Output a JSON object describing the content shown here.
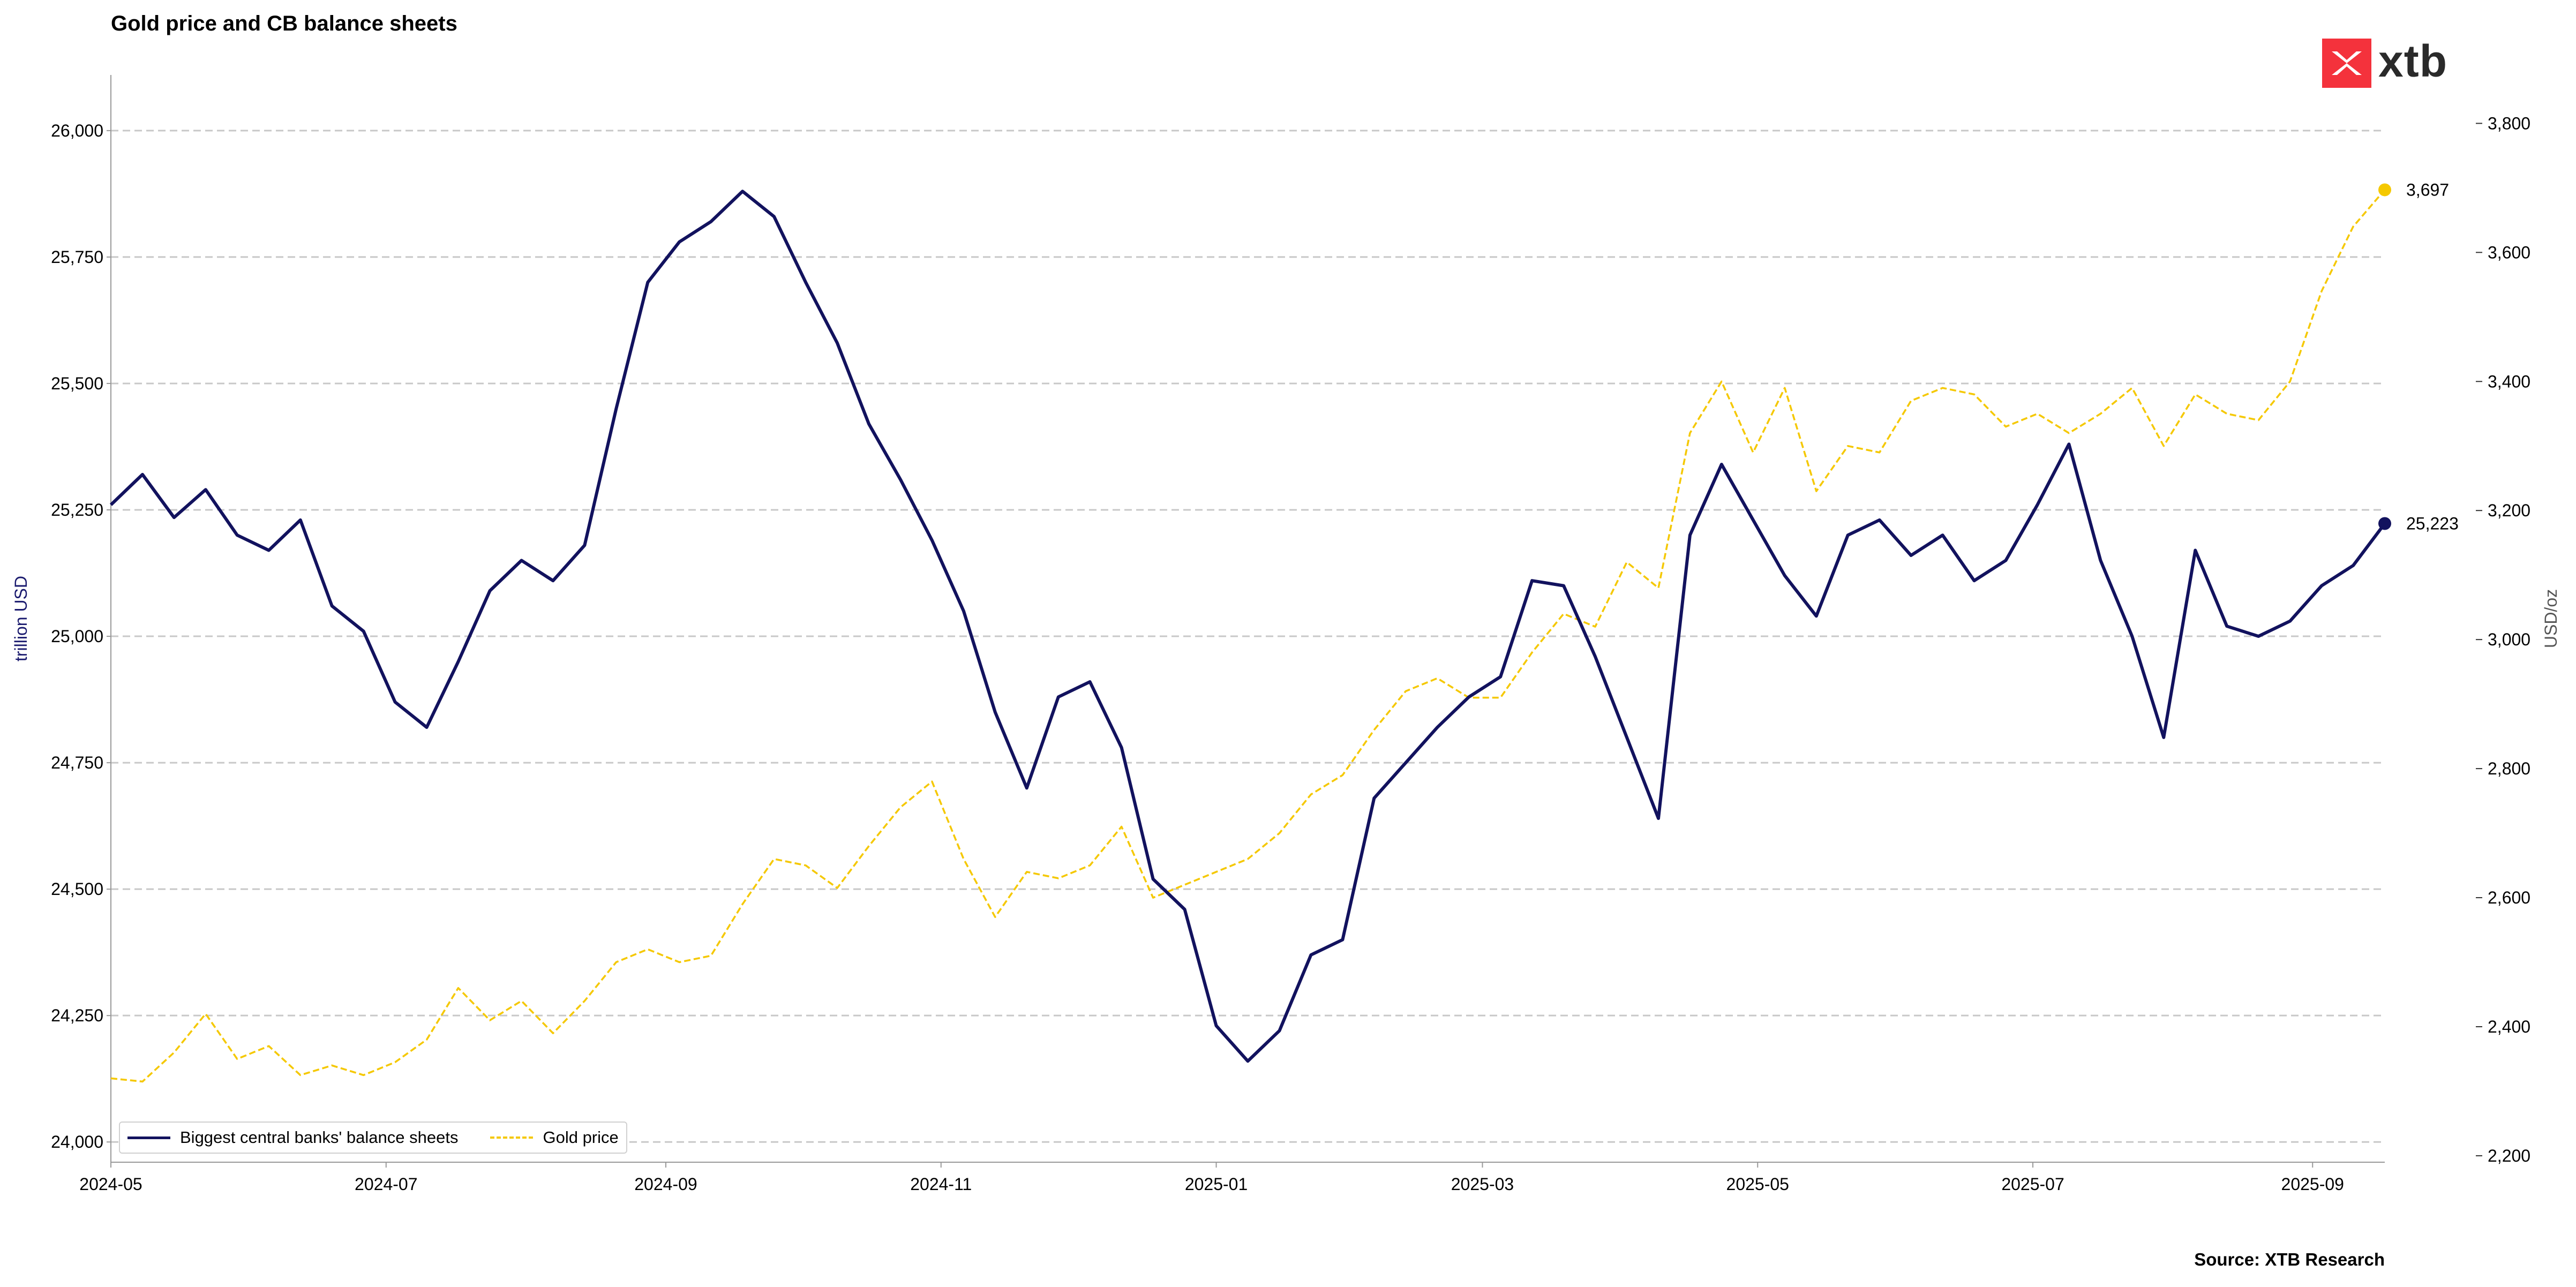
{
  "title": "Gold price and CB balance sheets",
  "source": "Source: XTB Research",
  "logo": {
    "text": "xtb",
    "icon": "xtb-logo-icon"
  },
  "colors": {
    "balance": "#12125e",
    "gold": "#f5c800",
    "grid": "#c8c8c8"
  },
  "chart_data": {
    "type": "line",
    "x_ticks": [
      "2024-05",
      "2024-07",
      "2024-09",
      "2024-11",
      "2025-01",
      "2025-03",
      "2025-05",
      "2025-07",
      "2025-09"
    ],
    "y_left": {
      "label": "trillion USD",
      "ticks": [
        "24,000",
        "24,250",
        "24,500",
        "24,750",
        "25,000",
        "25,250",
        "25,500",
        "25,750",
        "26,000"
      ],
      "range": [
        23960,
        26110
      ]
    },
    "y_right": {
      "label": "USD/oz",
      "ticks": [
        "2,200",
        "2,400",
        "2,600",
        "2,800",
        "3,000",
        "3,200",
        "3,400",
        "3,600",
        "3,800"
      ],
      "range": [
        2190,
        3875
      ]
    },
    "grid": "horizontal dashed",
    "legend_position": "bottom-left",
    "legend": [
      "Biggest central banks' balance sheets",
      "Gold price"
    ],
    "series": [
      {
        "name": "Biggest central banks' balance sheets",
        "axis": "left",
        "end_label": "25,223",
        "points": [
          [
            "2024-05-01",
            25260
          ],
          [
            "2024-05-08",
            25320
          ],
          [
            "2024-05-15",
            25235
          ],
          [
            "2024-05-22",
            25290
          ],
          [
            "2024-05-29",
            25200
          ],
          [
            "2024-06-05",
            25170
          ],
          [
            "2024-06-12",
            25230
          ],
          [
            "2024-06-19",
            25060
          ],
          [
            "2024-06-26",
            25010
          ],
          [
            "2024-07-03",
            24870
          ],
          [
            "2024-07-10",
            24820
          ],
          [
            "2024-07-17",
            24950
          ],
          [
            "2024-07-24",
            25090
          ],
          [
            "2024-07-31",
            25150
          ],
          [
            "2024-08-07",
            25110
          ],
          [
            "2024-08-14",
            25180
          ],
          [
            "2024-08-21",
            25450
          ],
          [
            "2024-08-28",
            25700
          ],
          [
            "2024-09-04",
            25780
          ],
          [
            "2024-09-11",
            25820
          ],
          [
            "2024-09-18",
            25880
          ],
          [
            "2024-09-25",
            25830
          ],
          [
            "2024-10-02",
            25700
          ],
          [
            "2024-10-09",
            25580
          ],
          [
            "2024-10-16",
            25420
          ],
          [
            "2024-10-23",
            25310
          ],
          [
            "2024-10-30",
            25190
          ],
          [
            "2024-11-06",
            25050
          ],
          [
            "2024-11-13",
            24850
          ],
          [
            "2024-11-20",
            24700
          ],
          [
            "2024-11-27",
            24880
          ],
          [
            "2024-12-04",
            24910
          ],
          [
            "2024-12-11",
            24780
          ],
          [
            "2024-12-18",
            24520
          ],
          [
            "2024-12-25",
            24460
          ],
          [
            "2025-01-01",
            24230
          ],
          [
            "2025-01-08",
            24160
          ],
          [
            "2025-01-15",
            24220
          ],
          [
            "2025-01-22",
            24370
          ],
          [
            "2025-01-29",
            24400
          ],
          [
            "2025-02-05",
            24680
          ],
          [
            "2025-02-12",
            24750
          ],
          [
            "2025-02-19",
            24820
          ],
          [
            "2025-02-26",
            24880
          ],
          [
            "2025-03-05",
            24920
          ],
          [
            "2025-03-12",
            25110
          ],
          [
            "2025-03-19",
            25100
          ],
          [
            "2025-03-26",
            24960
          ],
          [
            "2025-04-02",
            24800
          ],
          [
            "2025-04-09",
            24640
          ],
          [
            "2025-04-16",
            25200
          ],
          [
            "2025-04-23",
            25340
          ],
          [
            "2025-04-30",
            25230
          ],
          [
            "2025-05-07",
            25120
          ],
          [
            "2025-05-14",
            25040
          ],
          [
            "2025-05-21",
            25200
          ],
          [
            "2025-05-28",
            25230
          ],
          [
            "2025-06-04",
            25160
          ],
          [
            "2025-06-11",
            25200
          ],
          [
            "2025-06-18",
            25110
          ],
          [
            "2025-06-25",
            25150
          ],
          [
            "2025-07-02",
            25260
          ],
          [
            "2025-07-09",
            25380
          ],
          [
            "2025-07-16",
            25150
          ],
          [
            "2025-07-23",
            25000
          ],
          [
            "2025-07-30",
            24800
          ],
          [
            "2025-08-06",
            25170
          ],
          [
            "2025-08-13",
            25020
          ],
          [
            "2025-08-20",
            25000
          ],
          [
            "2025-08-27",
            25030
          ],
          [
            "2025-09-03",
            25100
          ],
          [
            "2025-09-10",
            25140
          ],
          [
            "2025-09-17",
            25223
          ]
        ]
      },
      {
        "name": "Gold price",
        "axis": "right",
        "end_label": "3,697",
        "points": [
          [
            "2024-05-01",
            2320
          ],
          [
            "2024-05-08",
            2315
          ],
          [
            "2024-05-15",
            2360
          ],
          [
            "2024-05-22",
            2420
          ],
          [
            "2024-05-29",
            2350
          ],
          [
            "2024-06-05",
            2370
          ],
          [
            "2024-06-12",
            2325
          ],
          [
            "2024-06-19",
            2340
          ],
          [
            "2024-06-26",
            2325
          ],
          [
            "2024-07-03",
            2345
          ],
          [
            "2024-07-10",
            2380
          ],
          [
            "2024-07-17",
            2460
          ],
          [
            "2024-07-24",
            2410
          ],
          [
            "2024-07-31",
            2440
          ],
          [
            "2024-08-07",
            2390
          ],
          [
            "2024-08-14",
            2440
          ],
          [
            "2024-08-21",
            2500
          ],
          [
            "2024-08-28",
            2520
          ],
          [
            "2024-09-04",
            2500
          ],
          [
            "2024-09-11",
            2510
          ],
          [
            "2024-09-18",
            2590
          ],
          [
            "2024-09-25",
            2660
          ],
          [
            "2024-10-02",
            2650
          ],
          [
            "2024-10-09",
            2615
          ],
          [
            "2024-10-16",
            2680
          ],
          [
            "2024-10-23",
            2740
          ],
          [
            "2024-10-30",
            2780
          ],
          [
            "2024-11-06",
            2660
          ],
          [
            "2024-11-13",
            2570
          ],
          [
            "2024-11-20",
            2640
          ],
          [
            "2024-11-27",
            2630
          ],
          [
            "2024-12-04",
            2650
          ],
          [
            "2024-12-11",
            2710
          ],
          [
            "2024-12-18",
            2600
          ],
          [
            "2024-12-25",
            2620
          ],
          [
            "2025-01-01",
            2640
          ],
          [
            "2025-01-08",
            2660
          ],
          [
            "2025-01-15",
            2700
          ],
          [
            "2025-01-22",
            2760
          ],
          [
            "2025-01-29",
            2790
          ],
          [
            "2025-02-05",
            2860
          ],
          [
            "2025-02-12",
            2920
          ],
          [
            "2025-02-19",
            2940
          ],
          [
            "2025-02-26",
            2910
          ],
          [
            "2025-03-05",
            2910
          ],
          [
            "2025-03-12",
            2980
          ],
          [
            "2025-03-19",
            3040
          ],
          [
            "2025-03-26",
            3020
          ],
          [
            "2025-04-02",
            3120
          ],
          [
            "2025-04-09",
            3080
          ],
          [
            "2025-04-16",
            3320
          ],
          [
            "2025-04-23",
            3400
          ],
          [
            "2025-04-30",
            3290
          ],
          [
            "2025-05-07",
            3390
          ],
          [
            "2025-05-14",
            3230
          ],
          [
            "2025-05-21",
            3300
          ],
          [
            "2025-05-28",
            3290
          ],
          [
            "2025-06-04",
            3370
          ],
          [
            "2025-06-11",
            3390
          ],
          [
            "2025-06-18",
            3380
          ],
          [
            "2025-06-25",
            3330
          ],
          [
            "2025-07-02",
            3350
          ],
          [
            "2025-07-09",
            3320
          ],
          [
            "2025-07-16",
            3350
          ],
          [
            "2025-07-23",
            3390
          ],
          [
            "2025-07-30",
            3300
          ],
          [
            "2025-08-06",
            3380
          ],
          [
            "2025-08-13",
            3350
          ],
          [
            "2025-08-20",
            3340
          ],
          [
            "2025-08-27",
            3400
          ],
          [
            "2025-09-03",
            3540
          ],
          [
            "2025-09-10",
            3640
          ],
          [
            "2025-09-17",
            3697
          ]
        ]
      }
    ]
  }
}
